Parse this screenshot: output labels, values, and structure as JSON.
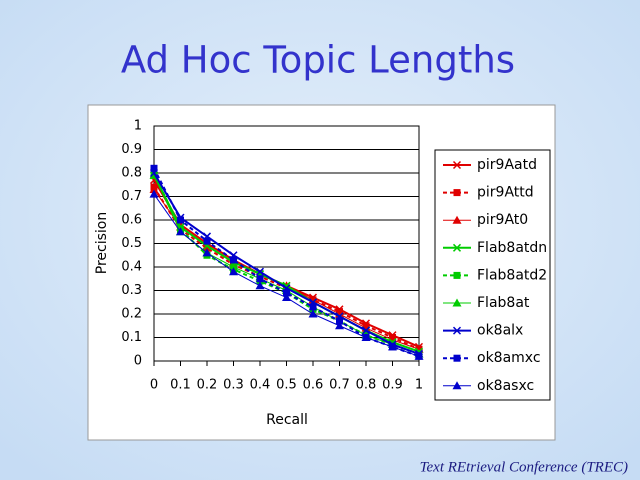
{
  "chart_data": {
    "type": "line",
    "title": "Ad Hoc Topic Lengths",
    "x_label": "Recall",
    "y_label": "Precision",
    "footer": "Text REtrieval Conference (TREC)",
    "x": [
      0,
      0.1,
      0.2,
      0.3,
      0.4,
      0.5,
      0.6,
      0.7,
      0.8,
      0.9,
      1
    ],
    "xlim": [
      0,
      1
    ],
    "xticks": [
      0,
      0.1,
      0.2,
      0.3,
      0.4,
      0.5,
      0.6,
      0.7,
      0.8,
      0.9,
      1
    ],
    "ylim": [
      0,
      1
    ],
    "yticks": [
      0,
      0.1,
      0.2,
      0.3,
      0.4,
      0.5,
      0.6,
      0.7,
      0.8,
      0.9,
      1
    ],
    "grid": true,
    "legend": "right",
    "series": [
      {
        "name": "pir9Aatd",
        "color": "#e00000",
        "dash": false,
        "marker": "x",
        "values": [
          0.77,
          0.58,
          0.5,
          0.43,
          0.37,
          0.32,
          0.27,
          0.22,
          0.16,
          0.11,
          0.06
        ]
      },
      {
        "name": "pir9Attd",
        "color": "#e00000",
        "dash": true,
        "marker": "square",
        "values": [
          0.74,
          0.56,
          0.48,
          0.41,
          0.36,
          0.31,
          0.26,
          0.21,
          0.15,
          0.1,
          0.05
        ]
      },
      {
        "name": "pir9At0",
        "color": "#e00000",
        "dash": false,
        "marker": "triangle",
        "values": [
          0.73,
          0.57,
          0.49,
          0.42,
          0.37,
          0.32,
          0.26,
          0.2,
          0.14,
          0.09,
          0.05
        ]
      },
      {
        "name": "Flab8atdn",
        "color": "#00cc00",
        "dash": false,
        "marker": "x",
        "values": [
          0.79,
          0.57,
          0.49,
          0.42,
          0.37,
          0.32,
          0.25,
          0.19,
          0.13,
          0.08,
          0.04
        ]
      },
      {
        "name": "Flab8atd2",
        "color": "#00cc00",
        "dash": true,
        "marker": "square",
        "values": [
          0.8,
          0.56,
          0.45,
          0.39,
          0.34,
          0.29,
          0.22,
          0.17,
          0.11,
          0.07,
          0.03
        ]
      },
      {
        "name": "Flab8at",
        "color": "#00cc00",
        "dash": false,
        "marker": "triangle",
        "values": [
          0.79,
          0.55,
          0.46,
          0.4,
          0.35,
          0.3,
          0.23,
          0.17,
          0.11,
          0.07,
          0.03
        ]
      },
      {
        "name": "ok8alx",
        "color": "#0000cc",
        "dash": false,
        "marker": "x",
        "values": [
          0.8,
          0.61,
          0.53,
          0.45,
          0.38,
          0.31,
          0.25,
          0.19,
          0.13,
          0.07,
          0.03
        ]
      },
      {
        "name": "ok8amxc",
        "color": "#0000cc",
        "dash": true,
        "marker": "square",
        "values": [
          0.82,
          0.6,
          0.51,
          0.43,
          0.35,
          0.29,
          0.23,
          0.17,
          0.1,
          0.06,
          0.02
        ]
      },
      {
        "name": "ok8asxc",
        "color": "#0000cc",
        "dash": false,
        "marker": "triangle",
        "values": [
          0.71,
          0.55,
          0.46,
          0.38,
          0.32,
          0.27,
          0.2,
          0.15,
          0.1,
          0.06,
          0.02
        ]
      }
    ]
  }
}
